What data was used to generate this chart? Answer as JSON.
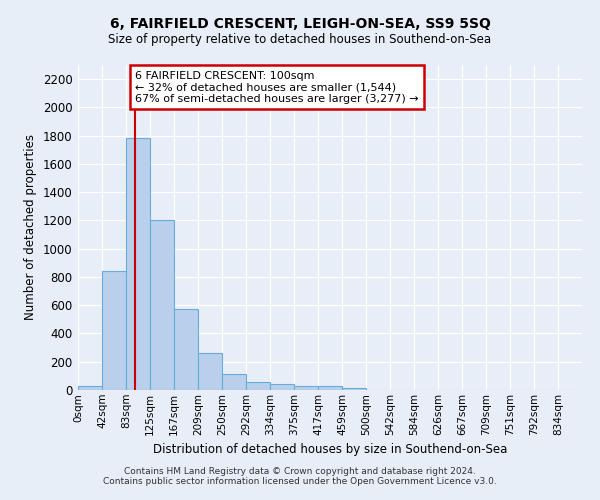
{
  "title": "6, FAIRFIELD CRESCENT, LEIGH-ON-SEA, SS9 5SQ",
  "subtitle": "Size of property relative to detached houses in Southend-on-Sea",
  "xlabel": "Distribution of detached houses by size in Southend-on-Sea",
  "ylabel": "Number of detached properties",
  "bar_labels": [
    "0sqm",
    "42sqm",
    "83sqm",
    "125sqm",
    "167sqm",
    "209sqm",
    "250sqm",
    "292sqm",
    "334sqm",
    "375sqm",
    "417sqm",
    "459sqm",
    "500sqm",
    "542sqm",
    "584sqm",
    "626sqm",
    "667sqm",
    "709sqm",
    "751sqm",
    "792sqm",
    "834sqm"
  ],
  "bar_values": [
    30,
    840,
    1780,
    1200,
    575,
    260,
    110,
    55,
    45,
    30,
    30,
    15,
    0,
    0,
    0,
    0,
    0,
    0,
    0,
    0,
    0
  ],
  "bar_color": "#b8d0ec",
  "bar_edge_color": "#6aacd8",
  "ylim": [
    0,
    2300
  ],
  "annotation_text": "6 FAIRFIELD CRESCENT: 100sqm\n← 32% of detached houses are smaller (1,544)\n67% of semi-detached houses are larger (3,277) →",
  "annotation_box_color": "#ffffff",
  "annotation_box_edge_color": "#cc0000",
  "property_line_x": 100,
  "bin_width": 42,
  "background_color": "#e8eef8",
  "grid_color": "#ffffff",
  "yticks": [
    0,
    200,
    400,
    600,
    800,
    1000,
    1200,
    1400,
    1600,
    1800,
    2000,
    2200
  ],
  "footer_line1": "Contains HM Land Registry data © Crown copyright and database right 2024.",
  "footer_line2": "Contains public sector information licensed under the Open Government Licence v3.0."
}
